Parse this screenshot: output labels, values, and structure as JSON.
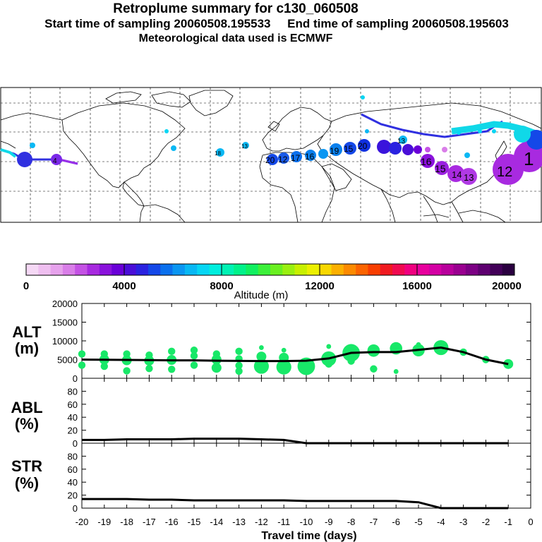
{
  "header": {
    "title": "Retroplume summary for c130_060508",
    "line2": "Start time of sampling 20060508.195533     End time of sampling 20060508.195603",
    "line3": "Meteorological data used is ECMWF"
  },
  "colorbar": {
    "ticks": [
      "0",
      "4000",
      "8000",
      "12000",
      "16000",
      "20000"
    ],
    "label": "Altitude (m)",
    "colors": [
      "#f5d8f5",
      "#efbff0",
      "#e6a2ec",
      "#d97ee8",
      "#c452e4",
      "#a82ae0",
      "#8a12dc",
      "#6a00d8",
      "#4a0ed8",
      "#2a22e0",
      "#1448e8",
      "#0a70ee",
      "#0a96f2",
      "#08b8f4",
      "#06d6f4",
      "#00eede",
      "#00f2b4",
      "#00f28a",
      "#10f060",
      "#3cf03a",
      "#6af020",
      "#9af010",
      "#c8f000",
      "#ecf000",
      "#f8d800",
      "#fcb000",
      "#fc8a00",
      "#fc6400",
      "#f83e00",
      "#f01a20",
      "#f00a50",
      "#f00080",
      "#e8009e",
      "#d400a4",
      "#b8009c",
      "#9a0090",
      "#7c0084",
      "#5e0070",
      "#420058",
      "#2a0040"
    ]
  },
  "map_labels": [
    {
      "text": "20",
      "type": "plume"
    },
    {
      "text": "12",
      "type": "plume"
    },
    {
      "text": "17",
      "type": "plume"
    },
    {
      "text": "16",
      "type": "plume"
    },
    {
      "text": "19",
      "type": "plume"
    },
    {
      "text": "15",
      "type": "plume"
    },
    {
      "text": "20",
      "type": "plume"
    },
    {
      "text": "13",
      "type": "plume"
    },
    {
      "text": "16",
      "type": "plume"
    },
    {
      "text": "15",
      "type": "plume"
    },
    {
      "text": "14",
      "type": "plume"
    },
    {
      "text": "13",
      "type": "plume"
    },
    {
      "text": "12",
      "type": "plume"
    },
    {
      "text": "1",
      "type": "plume"
    },
    {
      "text": "18",
      "type": "plume"
    },
    {
      "text": "13",
      "type": "plume"
    },
    {
      "text": "4",
      "type": "plume"
    }
  ],
  "chart_data": [
    {
      "type": "scatter",
      "title": "ALT (m)",
      "ylabel": "ALT (m)",
      "x": [
        -20,
        -19,
        -18,
        -17,
        -16,
        -15,
        -14,
        -13,
        -12,
        -11,
        -10,
        -9,
        -8,
        -7,
        -6,
        -5,
        -4,
        -3,
        -2,
        -1
      ],
      "ylim": [
        0,
        20000
      ],
      "yticks": [
        0,
        5000,
        10000,
        15000,
        20000
      ],
      "series": [
        {
          "name": "mean altitude",
          "type": "line",
          "x": [
            -20,
            -19,
            -18,
            -17,
            -16,
            -15,
            -14,
            -13,
            -12,
            -11,
            -10,
            -9,
            -8,
            -7,
            -6,
            -5,
            -4,
            -3,
            -2,
            -1
          ],
          "values": [
            5000,
            4950,
            4900,
            4850,
            4800,
            4800,
            4700,
            4650,
            4600,
            4600,
            4700,
            5300,
            6800,
            7000,
            7000,
            7600,
            8200,
            7000,
            5000,
            3800
          ]
        },
        {
          "name": "plume clusters",
          "type": "bubble",
          "points": [
            {
              "x": -20,
              "y": 6500,
              "s": 2
            },
            {
              "x": -20,
              "y": 3500,
              "s": 2
            },
            {
              "x": -19,
              "y": 6500,
              "s": 2
            },
            {
              "x": -19,
              "y": 5000,
              "s": 3
            },
            {
              "x": -19,
              "y": 3200,
              "s": 2
            },
            {
              "x": -18,
              "y": 6500,
              "s": 2
            },
            {
              "x": -18,
              "y": 4800,
              "s": 3
            },
            {
              "x": -18,
              "y": 2000,
              "s": 2
            },
            {
              "x": -17,
              "y": 6200,
              "s": 2
            },
            {
              "x": -17,
              "y": 4700,
              "s": 3
            },
            {
              "x": -17,
              "y": 2600,
              "s": 2
            },
            {
              "x": -16,
              "y": 7200,
              "s": 2
            },
            {
              "x": -16,
              "y": 4900,
              "s": 3
            },
            {
              "x": -16,
              "y": 2400,
              "s": 2
            },
            {
              "x": -15,
              "y": 7500,
              "s": 2
            },
            {
              "x": -15,
              "y": 6000,
              "s": 2
            },
            {
              "x": -15,
              "y": 3500,
              "s": 2
            },
            {
              "x": -14,
              "y": 6500,
              "s": 2
            },
            {
              "x": -14,
              "y": 5000,
              "s": 3
            },
            {
              "x": -14,
              "y": 2800,
              "s": 3
            },
            {
              "x": -13,
              "y": 7200,
              "s": 2
            },
            {
              "x": -13,
              "y": 5200,
              "s": 2
            },
            {
              "x": -13,
              "y": 3400,
              "s": 2
            },
            {
              "x": -13,
              "y": 1900,
              "s": 2
            },
            {
              "x": -12,
              "y": 8200,
              "s": 1
            },
            {
              "x": -12,
              "y": 5800,
              "s": 3
            },
            {
              "x": -12,
              "y": 3200,
              "s": 5
            },
            {
              "x": -11,
              "y": 7500,
              "s": 1
            },
            {
              "x": -11,
              "y": 5500,
              "s": 3
            },
            {
              "x": -11,
              "y": 3000,
              "s": 5
            },
            {
              "x": -10,
              "y": 3200,
              "s": 6
            },
            {
              "x": -9,
              "y": 8500,
              "s": 1
            },
            {
              "x": -9,
              "y": 5200,
              "s": 5
            },
            {
              "x": -9,
              "y": 3800,
              "s": 2
            },
            {
              "x": -8,
              "y": 8500,
              "s": 1
            },
            {
              "x": -8,
              "y": 6800,
              "s": 6
            },
            {
              "x": -8,
              "y": 4600,
              "s": 2
            },
            {
              "x": -7,
              "y": 7400,
              "s": 4
            },
            {
              "x": -7,
              "y": 2500,
              "s": 2
            },
            {
              "x": -6,
              "y": 8000,
              "s": 4
            },
            {
              "x": -6,
              "y": 1800,
              "s": 1
            },
            {
              "x": -5,
              "y": 7500,
              "s": 4
            },
            {
              "x": -5,
              "y": 9000,
              "s": 1
            },
            {
              "x": -4,
              "y": 8200,
              "s": 5
            },
            {
              "x": -4,
              "y": 9500,
              "s": 1
            },
            {
              "x": -3,
              "y": 7000,
              "s": 2
            },
            {
              "x": -2,
              "y": 5000,
              "s": 2
            },
            {
              "x": -1,
              "y": 3800,
              "s": 3
            }
          ]
        }
      ]
    },
    {
      "type": "line",
      "title": "ABL (%)",
      "ylabel": "ABL (%)",
      "x": [
        -20,
        -19,
        -18,
        -17,
        -16,
        -15,
        -14,
        -13,
        -12,
        -11,
        -10,
        -9,
        -8,
        -7,
        -6,
        -5,
        -4,
        -3,
        -2,
        -1
      ],
      "values": [
        5,
        5,
        6,
        6,
        6,
        7,
        7,
        7,
        6,
        5,
        0,
        0,
        0,
        0,
        0,
        0,
        0,
        0,
        0,
        0
      ],
      "ylim": [
        0,
        100
      ],
      "yticks": [
        0,
        20,
        40,
        60,
        80
      ]
    },
    {
      "type": "line",
      "title": "STR (%)",
      "ylabel": "STR (%)",
      "x": [
        -20,
        -19,
        -18,
        -17,
        -16,
        -15,
        -14,
        -13,
        -12,
        -11,
        -10,
        -9,
        -8,
        -7,
        -6,
        -5,
        -4,
        -3,
        -2,
        -1
      ],
      "values": [
        14,
        14,
        14,
        13,
        13,
        12,
        12,
        12,
        12,
        12,
        11,
        11,
        11,
        11,
        11,
        9,
        0,
        0,
        0,
        0
      ],
      "ylim": [
        0,
        100
      ],
      "yticks": [
        0,
        20,
        40,
        60,
        80
      ]
    }
  ],
  "xaxis": {
    "ticks": [
      "-20",
      "-19",
      "-18",
      "-17",
      "-16",
      "-15",
      "-14",
      "-13",
      "-12",
      "-11",
      "-10",
      "-9",
      "-8",
      "-7",
      "-6",
      "-5",
      "-4",
      "-3",
      "-2",
      "-1",
      "0"
    ],
    "label": "Travel time (days)"
  },
  "panel_labels": {
    "alt": [
      "ALT",
      "(m)"
    ],
    "abl": [
      "ABL",
      "(%)"
    ],
    "str": [
      "STR",
      "(%)"
    ]
  }
}
